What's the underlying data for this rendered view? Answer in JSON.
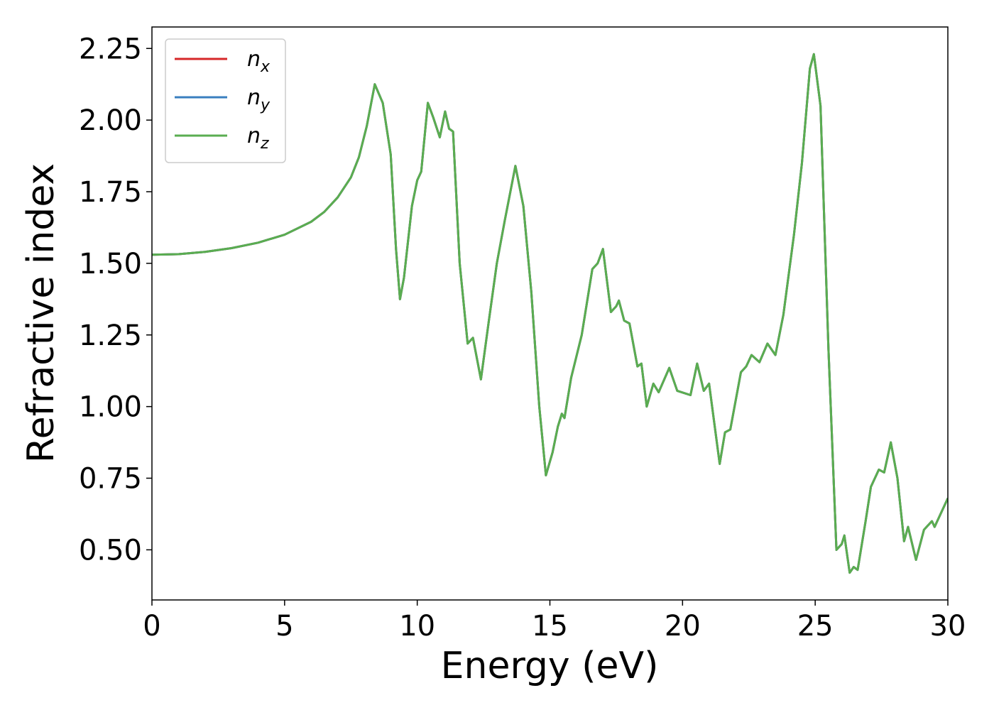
{
  "chart_data": {
    "type": "line",
    "xlabel": "Energy (eV)",
    "ylabel": "Refractive index",
    "xlim": [
      0,
      30
    ],
    "ylim": [
      0.325,
      2.325
    ],
    "xticks": [
      0,
      5,
      10,
      15,
      20,
      25,
      30
    ],
    "yticks": [
      {
        "value": 0.5,
        "label": "0.50"
      },
      0.75,
      {
        "value": 1,
        "label": "1.00"
      },
      1.25,
      {
        "value": 1.5,
        "label": "1.50"
      },
      1.75,
      {
        "value": 2,
        "label": "2.00"
      },
      2.25
    ],
    "legend": "upper left",
    "x": [
      0,
      1,
      2,
      3,
      4,
      5,
      6,
      6.5,
      7,
      7.5,
      7.8,
      8.1,
      8.4,
      8.7,
      9.0,
      9.2,
      9.35,
      9.5,
      9.8,
      10.0,
      10.15,
      10.4,
      10.6,
      10.85,
      11.05,
      11.2,
      11.35,
      11.6,
      11.9,
      12.1,
      12.4,
      12.7,
      13.0,
      13.3,
      13.7,
      14.0,
      14.3,
      14.6,
      14.85,
      15.1,
      15.3,
      15.45,
      15.55,
      15.8,
      16.2,
      16.6,
      16.8,
      17.0,
      17.3,
      17.5,
      17.6,
      17.8,
      18.0,
      18.3,
      18.45,
      18.65,
      18.9,
      19.1,
      19.5,
      19.8,
      20.3,
      20.55,
      20.8,
      21.0,
      21.4,
      21.6,
      21.8,
      22.2,
      22.4,
      22.6,
      22.9,
      23.2,
      23.5,
      23.8,
      24.2,
      24.5,
      24.8,
      24.95,
      25.2,
      25.5,
      25.8,
      26.0,
      26.1,
      26.3,
      26.45,
      26.6,
      26.9,
      27.1,
      27.4,
      27.6,
      27.85,
      28.1,
      28.35,
      28.5,
      28.8,
      29.1,
      29.4,
      29.5,
      29.8,
      30
    ],
    "series": [
      {
        "name": "nx",
        "color": "#d62728",
        "values": [
          1.53,
          1.532,
          1.54,
          1.553,
          1.572,
          1.6,
          1.645,
          1.68,
          1.73,
          1.8,
          1.87,
          1.98,
          2.125,
          2.06,
          1.88,
          1.55,
          1.375,
          1.45,
          1.7,
          1.79,
          1.82,
          2.06,
          2.01,
          1.94,
          2.03,
          1.97,
          1.96,
          1.5,
          1.22,
          1.24,
          1.095,
          1.3,
          1.5,
          1.65,
          1.84,
          1.7,
          1.4,
          1.0,
          0.76,
          0.84,
          0.93,
          0.975,
          0.96,
          1.1,
          1.25,
          1.48,
          1.5,
          1.55,
          1.33,
          1.35,
          1.37,
          1.3,
          1.29,
          1.14,
          1.15,
          1.0,
          1.08,
          1.05,
          1.135,
          1.055,
          1.04,
          1.15,
          1.055,
          1.08,
          0.8,
          0.91,
          0.92,
          1.12,
          1.14,
          1.18,
          1.155,
          1.22,
          1.18,
          1.32,
          1.6,
          1.85,
          2.18,
          2.23,
          2.05,
          1.2,
          0.5,
          0.52,
          0.55,
          0.42,
          0.44,
          0.43,
          0.6,
          0.72,
          0.78,
          0.77,
          0.875,
          0.75,
          0.53,
          0.58,
          0.465,
          0.57,
          0.6,
          0.58,
          0.64,
          0.68
        ]
      },
      {
        "name": "ny",
        "color": "#3a7fbf",
        "values": [
          1.53,
          1.532,
          1.54,
          1.553,
          1.572,
          1.6,
          1.645,
          1.68,
          1.73,
          1.8,
          1.87,
          1.98,
          2.125,
          2.06,
          1.88,
          1.55,
          1.375,
          1.45,
          1.7,
          1.79,
          1.82,
          2.06,
          2.01,
          1.94,
          2.03,
          1.97,
          1.96,
          1.5,
          1.22,
          1.24,
          1.095,
          1.3,
          1.5,
          1.65,
          1.84,
          1.7,
          1.4,
          1.0,
          0.76,
          0.84,
          0.93,
          0.975,
          0.96,
          1.1,
          1.25,
          1.48,
          1.5,
          1.55,
          1.33,
          1.35,
          1.37,
          1.3,
          1.29,
          1.14,
          1.15,
          1.0,
          1.08,
          1.05,
          1.135,
          1.055,
          1.04,
          1.15,
          1.055,
          1.08,
          0.8,
          0.91,
          0.92,
          1.12,
          1.14,
          1.18,
          1.155,
          1.22,
          1.18,
          1.32,
          1.6,
          1.85,
          2.18,
          2.23,
          2.05,
          1.2,
          0.5,
          0.52,
          0.55,
          0.42,
          0.44,
          0.43,
          0.6,
          0.72,
          0.78,
          0.77,
          0.875,
          0.75,
          0.53,
          0.58,
          0.465,
          0.57,
          0.6,
          0.58,
          0.64,
          0.68
        ]
      },
      {
        "name": "nz",
        "color": "#5aad50",
        "values": [
          1.53,
          1.532,
          1.54,
          1.553,
          1.572,
          1.6,
          1.645,
          1.68,
          1.73,
          1.8,
          1.87,
          1.98,
          2.125,
          2.06,
          1.88,
          1.55,
          1.375,
          1.45,
          1.7,
          1.79,
          1.82,
          2.06,
          2.01,
          1.94,
          2.03,
          1.97,
          1.96,
          1.5,
          1.22,
          1.24,
          1.095,
          1.3,
          1.5,
          1.65,
          1.84,
          1.7,
          1.4,
          1.0,
          0.76,
          0.84,
          0.93,
          0.975,
          0.96,
          1.1,
          1.25,
          1.48,
          1.5,
          1.55,
          1.33,
          1.35,
          1.37,
          1.3,
          1.29,
          1.14,
          1.15,
          1.0,
          1.08,
          1.05,
          1.135,
          1.055,
          1.04,
          1.15,
          1.055,
          1.08,
          0.8,
          0.91,
          0.92,
          1.12,
          1.14,
          1.18,
          1.155,
          1.22,
          1.18,
          1.32,
          1.6,
          1.85,
          2.18,
          2.23,
          2.05,
          1.2,
          0.5,
          0.52,
          0.55,
          0.42,
          0.44,
          0.43,
          0.6,
          0.72,
          0.78,
          0.77,
          0.875,
          0.75,
          0.53,
          0.58,
          0.465,
          0.57,
          0.6,
          0.58,
          0.64,
          0.68
        ]
      }
    ]
  }
}
